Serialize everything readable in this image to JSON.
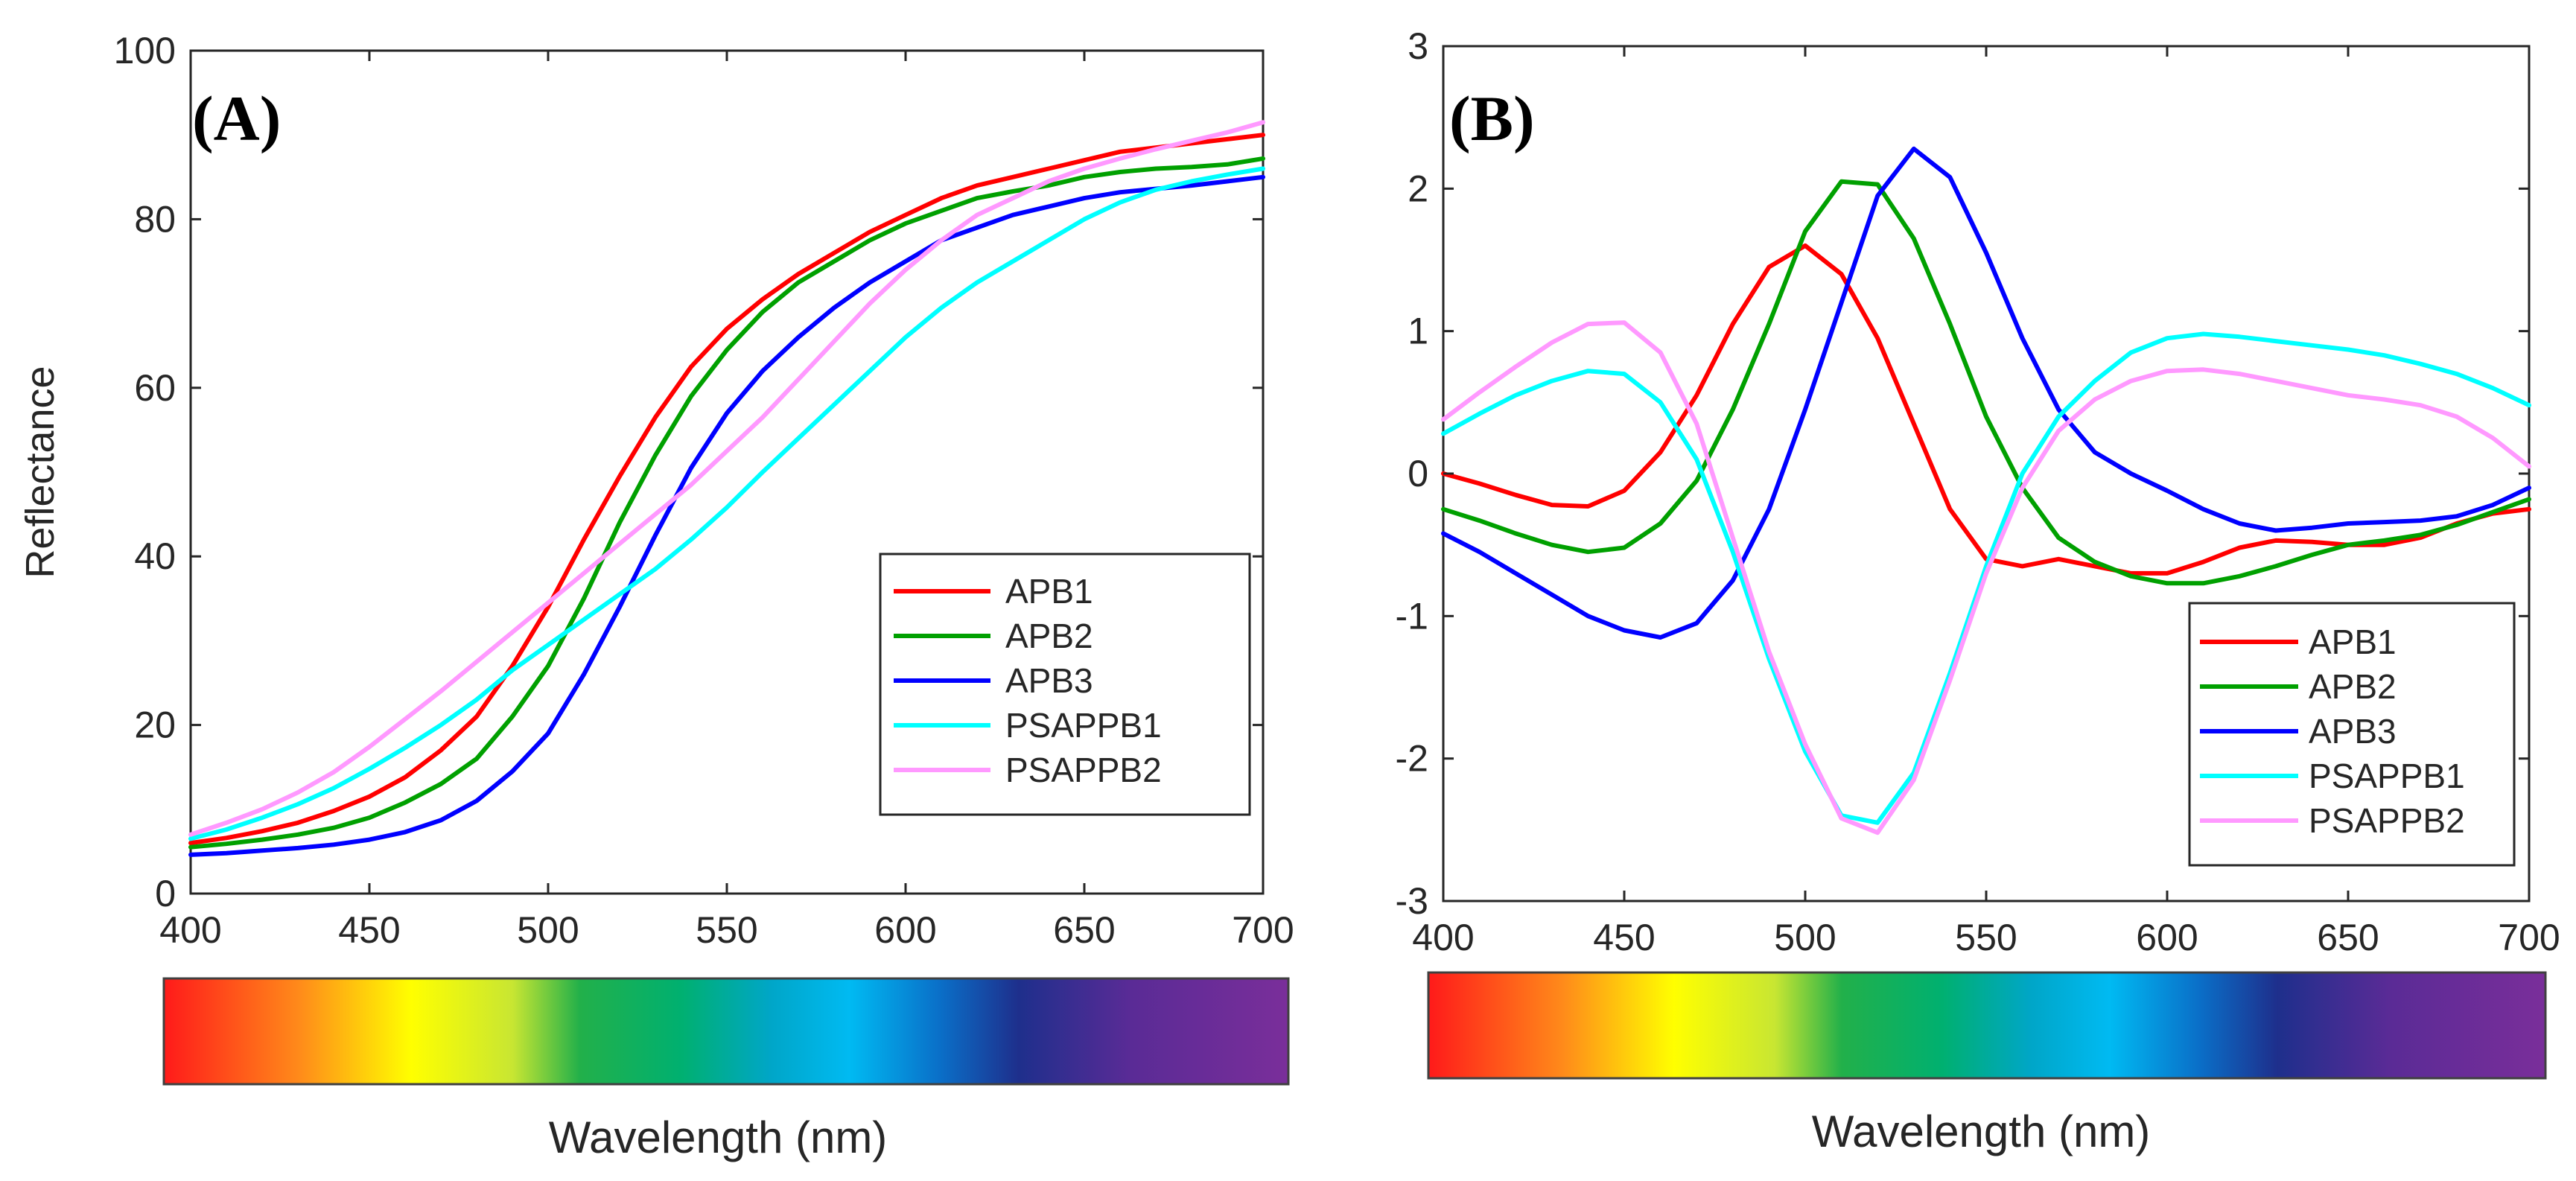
{
  "chart_data": [
    {
      "type": "line",
      "panel_label": "(A)",
      "title": "",
      "xlabel": "",
      "ylabel": "Reflectance",
      "xlim": [
        400,
        700
      ],
      "ylim": [
        0,
        100
      ],
      "xticks": [
        400,
        450,
        500,
        550,
        600,
        650,
        700
      ],
      "yticks": [
        0,
        20,
        40,
        60,
        80,
        100
      ],
      "grid": false,
      "legend_position": "bottom-right",
      "x": [
        400,
        410,
        420,
        430,
        440,
        450,
        460,
        470,
        480,
        490,
        500,
        510,
        520,
        530,
        540,
        550,
        560,
        570,
        580,
        590,
        600,
        610,
        620,
        630,
        640,
        650,
        660,
        670,
        680,
        690,
        700
      ],
      "series": [
        {
          "name": "APB1",
          "color": "#ff0000",
          "values": [
            6.0,
            6.6,
            7.4,
            8.4,
            9.8,
            11.5,
            13.8,
            17,
            21,
            27,
            34,
            42,
            49.5,
            56.5,
            62.5,
            67,
            70.5,
            73.5,
            76,
            78.5,
            80.5,
            82.5,
            84,
            85,
            86,
            87,
            88,
            88.5,
            89,
            89.5,
            90
          ]
        },
        {
          "name": "APB2",
          "color": "#00a000",
          "values": [
            5.5,
            5.9,
            6.4,
            7.0,
            7.8,
            9.0,
            10.8,
            13,
            16,
            21,
            27,
            35,
            44,
            52,
            59,
            64.5,
            69,
            72.5,
            75,
            77.5,
            79.5,
            81,
            82.5,
            83.3,
            84,
            85,
            85.6,
            86,
            86.2,
            86.5,
            87.2
          ]
        },
        {
          "name": "APB3",
          "color": "#0000ff",
          "values": [
            4.6,
            4.8,
            5.1,
            5.4,
            5.8,
            6.4,
            7.3,
            8.7,
            11,
            14.5,
            19,
            26,
            34,
            42.5,
            50.5,
            57,
            62,
            66,
            69.5,
            72.5,
            75,
            77.5,
            79,
            80.5,
            81.5,
            82.5,
            83.2,
            83.6,
            84,
            84.5,
            85
          ]
        },
        {
          "name": "PSAPPB1",
          "color": "#00ffff",
          "values": [
            6.5,
            7.6,
            9.0,
            10.6,
            12.5,
            14.8,
            17.3,
            20,
            23,
            26.5,
            29.5,
            32.5,
            35.5,
            38.5,
            42,
            45.8,
            50,
            54,
            58,
            62,
            66,
            69.5,
            72.5,
            75,
            77.5,
            80,
            82,
            83.5,
            84.5,
            85.3,
            86
          ]
        },
        {
          "name": "PSAPPB2",
          "color": "#ff99ff",
          "values": [
            7.0,
            8.4,
            10.0,
            12.0,
            14.4,
            17.4,
            20.7,
            24,
            27.5,
            31,
            34.5,
            38,
            41.5,
            45,
            48.5,
            52.5,
            56.5,
            61,
            65.5,
            70,
            74,
            77.5,
            80.5,
            82.5,
            84.5,
            86,
            87.2,
            88.3,
            89.3,
            90.3,
            91.5
          ]
        }
      ],
      "color_bar": {
        "label": "Wavelength (nm)",
        "range": [
          400,
          700
        ]
      }
    },
    {
      "type": "line",
      "panel_label": "(B)",
      "title": "",
      "xlabel": "",
      "ylabel": "",
      "xlim": [
        400,
        700
      ],
      "ylim": [
        -3,
        3
      ],
      "xticks": [
        400,
        450,
        500,
        550,
        600,
        650,
        700
      ],
      "yticks": [
        -3,
        -2,
        -1,
        0,
        1,
        2,
        3
      ],
      "grid": false,
      "legend_position": "bottom-right",
      "x": [
        400,
        410,
        420,
        430,
        440,
        450,
        460,
        470,
        480,
        490,
        500,
        510,
        520,
        530,
        540,
        550,
        560,
        570,
        580,
        590,
        600,
        610,
        620,
        630,
        640,
        650,
        660,
        670,
        680,
        690,
        700
      ],
      "series": [
        {
          "name": "APB1",
          "color": "#ff0000",
          "values": [
            0.0,
            -0.07,
            -0.15,
            -0.22,
            -0.23,
            -0.12,
            0.15,
            0.55,
            1.05,
            1.45,
            1.6,
            1.4,
            0.95,
            0.35,
            -0.25,
            -0.6,
            -0.65,
            -0.6,
            -0.65,
            -0.7,
            -0.7,
            -0.62,
            -0.52,
            -0.47,
            -0.48,
            -0.5,
            -0.5,
            -0.45,
            -0.35,
            -0.28,
            -0.25
          ]
        },
        {
          "name": "APB2",
          "color": "#00a000",
          "values": [
            -0.25,
            -0.33,
            -0.42,
            -0.5,
            -0.55,
            -0.52,
            -0.35,
            -0.05,
            0.45,
            1.05,
            1.7,
            2.05,
            2.03,
            1.65,
            1.05,
            0.4,
            -0.1,
            -0.45,
            -0.62,
            -0.72,
            -0.77,
            -0.77,
            -0.72,
            -0.65,
            -0.57,
            -0.5,
            -0.47,
            -0.43,
            -0.36,
            -0.27,
            -0.18
          ]
        },
        {
          "name": "APB3",
          "color": "#0000ff",
          "values": [
            -0.42,
            -0.55,
            -0.7,
            -0.85,
            -1.0,
            -1.1,
            -1.15,
            -1.05,
            -0.75,
            -0.25,
            0.45,
            1.2,
            1.95,
            2.28,
            2.08,
            1.55,
            0.95,
            0.45,
            0.15,
            0.0,
            -0.12,
            -0.25,
            -0.35,
            -0.4,
            -0.38,
            -0.35,
            -0.34,
            -0.33,
            -0.3,
            -0.22,
            -0.1
          ]
        },
        {
          "name": "PSAPPB1",
          "color": "#00ffff",
          "values": [
            0.28,
            0.42,
            0.55,
            0.65,
            0.72,
            0.7,
            0.5,
            0.1,
            -0.55,
            -1.3,
            -1.95,
            -2.4,
            -2.45,
            -2.1,
            -1.4,
            -0.65,
            0.0,
            0.4,
            0.65,
            0.85,
            0.95,
            0.98,
            0.96,
            0.93,
            0.9,
            0.87,
            0.83,
            0.77,
            0.7,
            0.6,
            0.48
          ]
        },
        {
          "name": "PSAPPB2",
          "color": "#ff99ff",
          "values": [
            0.38,
            0.57,
            0.75,
            0.92,
            1.05,
            1.06,
            0.85,
            0.35,
            -0.45,
            -1.25,
            -1.9,
            -2.42,
            -2.52,
            -2.15,
            -1.45,
            -0.7,
            -0.1,
            0.3,
            0.52,
            0.65,
            0.72,
            0.73,
            0.7,
            0.65,
            0.6,
            0.55,
            0.52,
            0.48,
            0.4,
            0.25,
            0.05
          ]
        }
      ],
      "color_bar": {
        "label": "Wavelength (nm)",
        "range": [
          400,
          700
        ]
      }
    }
  ]
}
